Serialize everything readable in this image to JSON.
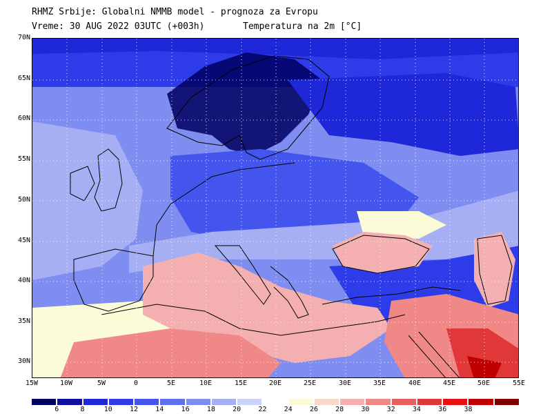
{
  "header": {
    "line1": "RHMZ Srbije: Globalni NMMB model - prognoza za Evropu",
    "line2": "Vreme: 30 AUG 2022 03UTC (+003h)",
    "line3": "Temperatura na 2m [°C]"
  },
  "map": {
    "lat_labels": [
      "70N",
      "65N",
      "60N",
      "55N",
      "50N",
      "45N",
      "40N",
      "35N",
      "30N"
    ],
    "lon_labels": [
      "15W",
      "10W",
      "5W",
      "0",
      "5E",
      "10E",
      "15E",
      "20E",
      "25E",
      "30E",
      "35E",
      "40E",
      "45E",
      "50E",
      "55E"
    ],
    "colors": {
      "deep_cold": "#0a1a78",
      "cold": "#1e32d8",
      "cool": "#5a6ee8",
      "mild": "#a7b4f2",
      "neutral": "#fbfbd7",
      "warm": "#f6a4a4",
      "hot": "#e66060",
      "very_hot": "#c82020"
    }
  },
  "colorbar": {
    "ticks": [
      "6",
      "8",
      "10",
      "12",
      "14",
      "16",
      "18",
      "20",
      "22",
      "24",
      "26",
      "28",
      "30",
      "32",
      "34",
      "36",
      "38"
    ],
    "colors": [
      "#000060",
      "#1010a0",
      "#1e28d8",
      "#2d3ce8",
      "#4455ee",
      "#6070ee",
      "#7f8cf0",
      "#a6aef4",
      "#cdd2fa",
      "#ffffff",
      "#fbfbd7",
      "#f8d8c8",
      "#f4b0b0",
      "#f08888",
      "#e86060",
      "#e03838",
      "#e81010",
      "#c00000",
      "#800000"
    ]
  }
}
